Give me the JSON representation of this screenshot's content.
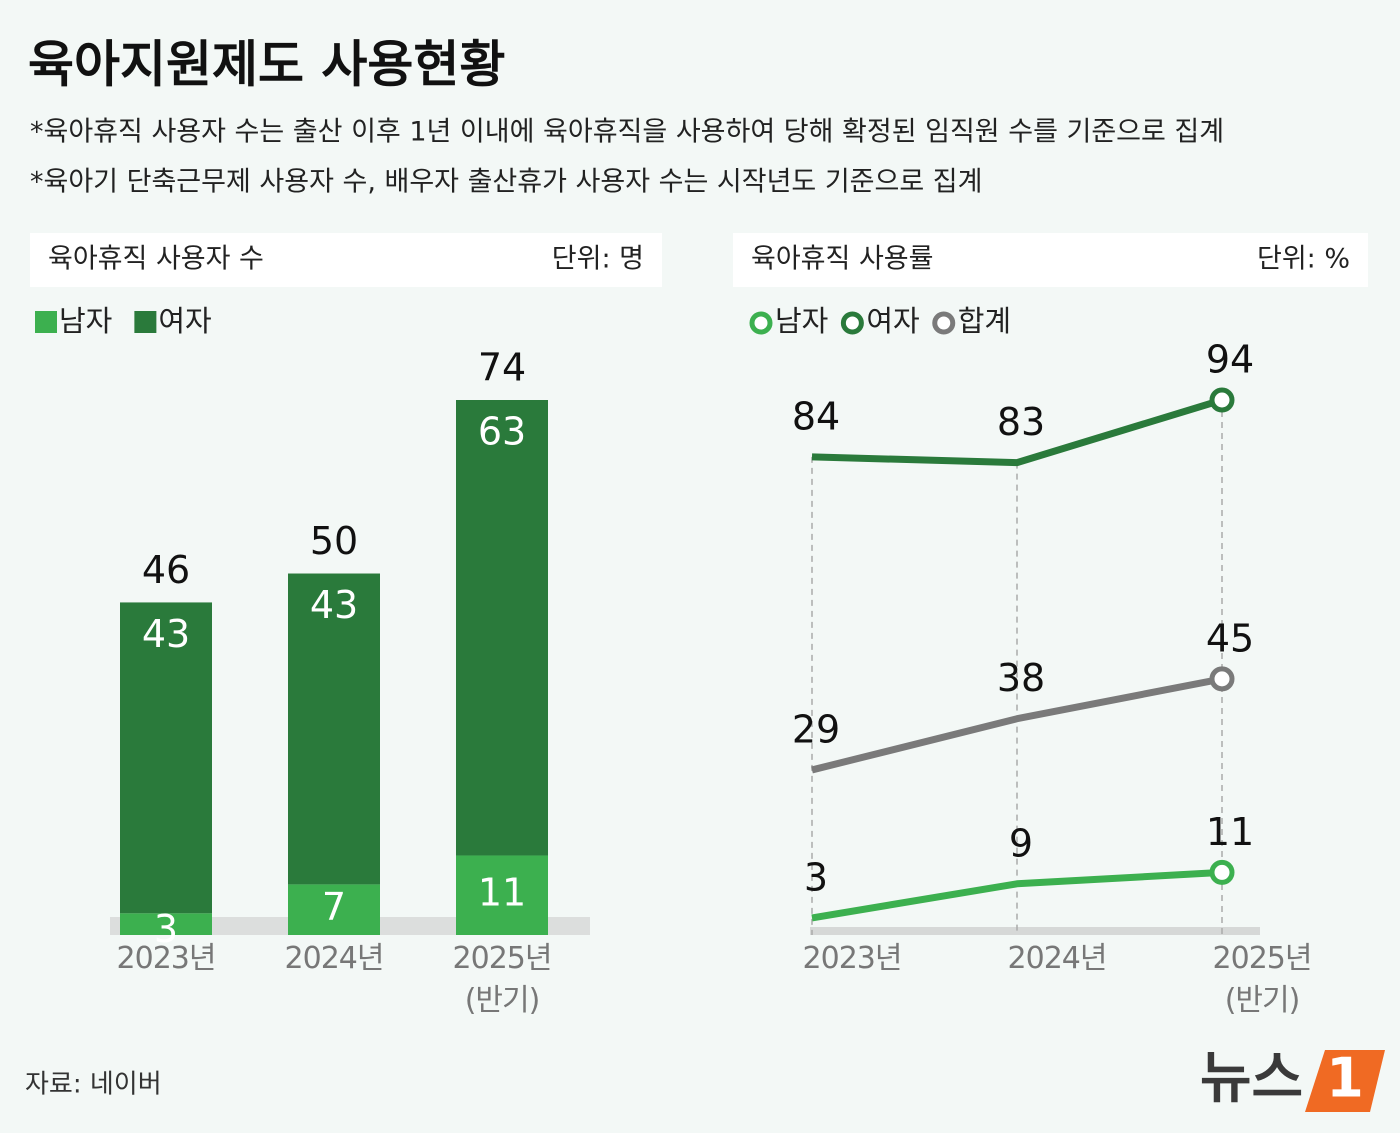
{
  "title": "육아지원제도 사용현황",
  "notes": [
    "*육아휴직 사용자 수는 출산 이후 1년 이내에 육아휴직을 사용하여 당해 확정된 임직원 수를 기준으로 집계",
    "*육아기 단축근무제 사용자 수, 배우자 출산휴가 사용자 수는 시작년도 기준으로 집계"
  ],
  "chart_data": [
    {
      "type": "bar",
      "stacked": true,
      "title": "육아휴직 사용자 수",
      "unit": "단위: 명",
      "categories": [
        "2023년",
        "2024년",
        "2025년\n(반기)"
      ],
      "series": [
        {
          "name": "남자",
          "color": "#3cb04f",
          "values": [
            3,
            7,
            11
          ]
        },
        {
          "name": "여자",
          "color": "#2a7a3b",
          "values": [
            43,
            43,
            63
          ]
        }
      ],
      "totals": [
        46,
        50,
        74
      ]
    },
    {
      "type": "line",
      "title": "육아휴직 사용률",
      "unit": "단위: %",
      "categories": [
        "2023년",
        "2024년",
        "2025년\n(반기)"
      ],
      "series": [
        {
          "name": "남자",
          "color": "#3cb04f",
          "values": [
            3,
            9,
            11
          ]
        },
        {
          "name": "여자",
          "color": "#2a7a3b",
          "values": [
            84,
            83,
            94
          ]
        },
        {
          "name": "합계",
          "color": "#7a7a7a",
          "values": [
            29,
            38,
            45
          ]
        }
      ]
    }
  ],
  "source": "자료: 네이버",
  "logo": {
    "text": "뉴스",
    "mark": "1"
  }
}
